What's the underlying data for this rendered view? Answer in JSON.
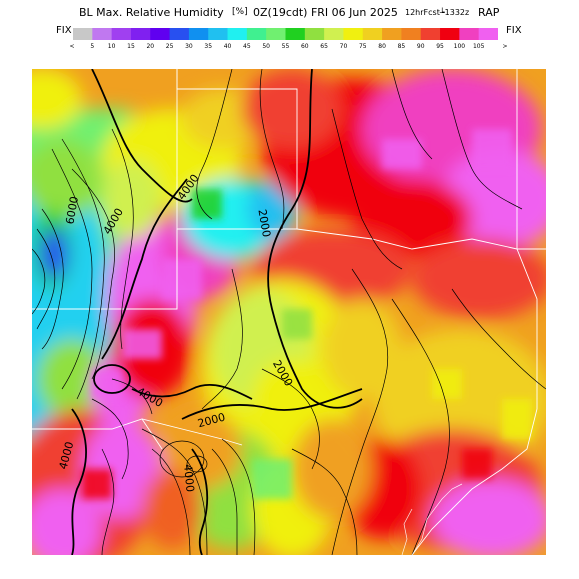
{
  "title": {
    "parameter": "BL Max. Relative Humidity",
    "units": "[%]",
    "valid_time": "0Z(19cdt) FRI 06 Jun 2025",
    "forecast_info": "12hrFcst┶1332z",
    "model": "RAP"
  },
  "colorbar": {
    "fix_label": "FIX",
    "less_than_symbol": "<",
    "greater_than_symbol": ">",
    "ticks": [
      "5",
      "10",
      "15",
      "20",
      "25",
      "30",
      "35",
      "40",
      "45",
      "50",
      "55",
      "60",
      "65",
      "70",
      "75",
      "80",
      "85",
      "90",
      "95",
      "100",
      "105"
    ],
    "colors": [
      "#c8c8c8",
      "#c078f0",
      "#a040f0",
      "#8020f0",
      "#6000f0",
      "#2850f0",
      "#1090f0",
      "#20c0f0",
      "#20f0f0",
      "#40f090",
      "#70f070",
      "#20d020",
      "#90e040",
      "#d0f050",
      "#f0f010",
      "#f0d020",
      "#f0a020",
      "#f08020",
      "#f04030",
      "#f00010",
      "#f040c0",
      "#f060f0"
    ]
  },
  "map": {
    "contour_labels": [
      "4000",
      "6000",
      "4000",
      "2000",
      "2000",
      "2000",
      "4000",
      "4000",
      "4000"
    ]
  },
  "colors": {
    "state_borders": "#ffffff",
    "height_contours": "#000000"
  }
}
